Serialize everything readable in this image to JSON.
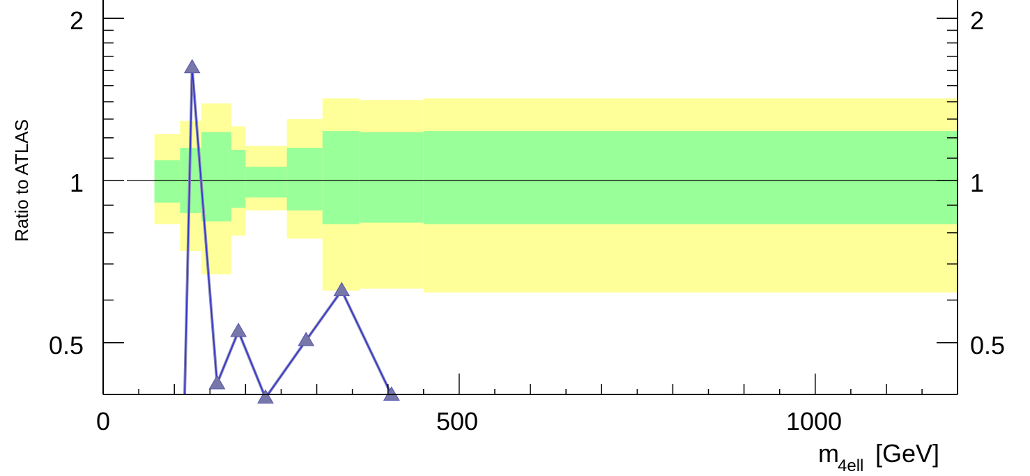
{
  "chart_data": {
    "type": "line",
    "xlabel": "m_{4ell} [GeV]",
    "xlabel_main": "m",
    "xlabel_sub": "4ell",
    "xlabel_unit": "[GeV]",
    "ylabel": "Ratio to ATLAS",
    "xlim": [
      0,
      1210
    ],
    "ylim": [
      0.36,
      2.1
    ],
    "log_y": true,
    "grid": false,
    "reference_line": 1,
    "x_tick_labels": [
      "0",
      "500",
      "1000"
    ],
    "y_tick_labels": [
      "0.5",
      "1",
      "2"
    ],
    "uncertainty_bins": [
      {
        "x0": 72,
        "x1": 108,
        "outer_lo": 0.83,
        "outer_hi": 1.22,
        "inner_lo": 0.91,
        "inner_hi": 1.09
      },
      {
        "x0": 108,
        "x1": 138,
        "outer_lo": 0.74,
        "outer_hi": 1.29,
        "inner_lo": 0.87,
        "inner_hi": 1.15
      },
      {
        "x0": 138,
        "x1": 180,
        "outer_lo": 0.67,
        "outer_hi": 1.39,
        "inner_lo": 0.84,
        "inner_hi": 1.23
      },
      {
        "x0": 180,
        "x1": 200,
        "outer_lo": 0.79,
        "outer_hi": 1.26,
        "inner_lo": 0.89,
        "inner_hi": 1.14
      },
      {
        "x0": 200,
        "x1": 258,
        "outer_lo": 0.88,
        "outer_hi": 1.16,
        "inner_lo": 0.93,
        "inner_hi": 1.06
      },
      {
        "x0": 258,
        "x1": 308,
        "outer_lo": 0.78,
        "outer_hi": 1.3,
        "inner_lo": 0.88,
        "inner_hi": 1.15
      },
      {
        "x0": 308,
        "x1": 360,
        "outer_lo": 0.625,
        "outer_hi": 1.42,
        "inner_lo": 0.83,
        "inner_hi": 1.235
      },
      {
        "x0": 360,
        "x1": 450,
        "outer_lo": 0.63,
        "outer_hi": 1.41,
        "inner_lo": 0.835,
        "inner_hi": 1.23
      },
      {
        "x0": 450,
        "x1": 1210,
        "outer_lo": 0.62,
        "outer_hi": 1.42,
        "inner_lo": 0.83,
        "inner_hi": 1.235
      }
    ],
    "series": [
      {
        "color": "#3333cc",
        "marker_color": "#7777aa",
        "x": [
          113,
          125,
          160,
          190,
          228,
          285,
          335,
          405,
          600
        ],
        "y": [
          0.33,
          1.62,
          0.42,
          0.525,
          0.395,
          0.505,
          0.625,
          0.4,
          0.36
        ],
        "markers": [
          false,
          true,
          true,
          true,
          true,
          true,
          true,
          true,
          false
        ]
      }
    ],
    "colors": {
      "outer_band": "#ffff99",
      "inner_band": "#99ff99",
      "axis": "#000000"
    }
  }
}
